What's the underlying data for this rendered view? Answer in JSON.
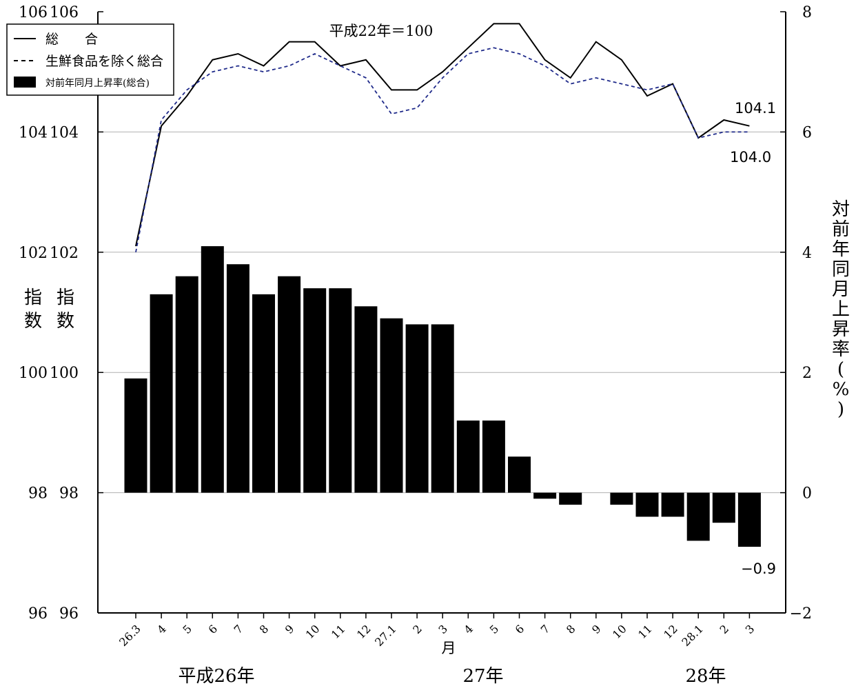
{
  "chart_data": {
    "type": "bar",
    "base_note": "平成22年＝100",
    "left_axis": {
      "label_chars": [
        "指",
        "数"
      ],
      "range": [
        96,
        106
      ],
      "ticks": [
        96,
        98,
        100,
        102,
        104,
        106
      ]
    },
    "right_axis": {
      "label_chars": [
        "対",
        "前",
        "年",
        "同",
        "月",
        "上",
        "昇",
        "率",
        "(",
        "%",
        ")"
      ],
      "range": [
        -2,
        8
      ],
      "ticks": [
        -2,
        0,
        2,
        4,
        6,
        8
      ]
    },
    "month_unit": "月",
    "year_labels": [
      "平成26年",
      "27年",
      "28年"
    ],
    "categories": [
      "26.3",
      "4",
      "5",
      "6",
      "7",
      "8",
      "9",
      "10",
      "11",
      "12",
      "27.1",
      "2",
      "3",
      "4",
      "5",
      "6",
      "7",
      "8",
      "9",
      "10",
      "11",
      "12",
      "28.1",
      "2",
      "3"
    ],
    "grid": true,
    "legend_position": "top-left",
    "legend": [
      {
        "label": "総　　合",
        "style": "solid-line"
      },
      {
        "label": "生鮮食品を除く総合",
        "style": "dashed-line"
      },
      {
        "label": "対前年同月上昇率(総合)",
        "style": "bar"
      }
    ],
    "series": [
      {
        "name": "総　　合",
        "axis": "left",
        "kind": "line",
        "color": "#000000",
        "values": [
          102.1,
          104.1,
          104.6,
          105.2,
          105.3,
          105.1,
          105.5,
          105.5,
          105.1,
          105.2,
          104.7,
          104.7,
          105.0,
          105.4,
          105.8,
          105.8,
          105.2,
          104.9,
          105.5,
          105.2,
          104.6,
          104.8,
          103.9,
          104.2,
          104.1
        ]
      },
      {
        "name": "生鮮食品を除く総合",
        "axis": "left",
        "kind": "dashed-line",
        "color": "#1f2a8a",
        "values": [
          102.0,
          104.2,
          104.7,
          105.0,
          105.1,
          105.0,
          105.1,
          105.3,
          105.1,
          104.9,
          104.3,
          104.4,
          104.9,
          105.3,
          105.4,
          105.3,
          105.1,
          104.8,
          104.9,
          104.8,
          104.7,
          104.8,
          103.9,
          104.0,
          104.0
        ]
      },
      {
        "name": "対前年同月上昇率(総合)",
        "axis": "right",
        "kind": "bar",
        "color": "#000000",
        "values": [
          1.9,
          3.3,
          3.6,
          4.1,
          3.8,
          3.3,
          3.6,
          3.4,
          3.4,
          3.1,
          2.9,
          2.8,
          2.8,
          1.2,
          1.2,
          0.6,
          -0.1,
          -0.2,
          0.0,
          -0.2,
          -0.4,
          -0.4,
          -0.8,
          -0.5,
          -0.9
        ]
      }
    ],
    "annotations": [
      "104.1",
      "104.0",
      "−0.9"
    ]
  }
}
